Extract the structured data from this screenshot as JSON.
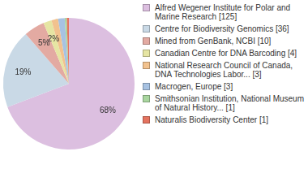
{
  "chart_data": {
    "type": "pie",
    "categories": [
      "Alfred Wegener Institute for Polar and Marine Research [125]",
      "Centre for Biodiversity Genomics [36]",
      "Mined from GenBank, NCBI [10]",
      "Canadian Centre for DNA Barcoding [4]",
      "National Research Council of Canada, DNA Technologies Labor... [3]",
      "Macrogen, Europe [3]",
      "Smithsonian Institution, National Museum of Natural History... [1]",
      "Naturalis Biodiversity Center [1]"
    ],
    "values": [
      68,
      19,
      5,
      2,
      1.6,
      1.6,
      0.5,
      0.5
    ],
    "value_labels": [
      "68%",
      "19%",
      "5%",
      "2%",
      null,
      null,
      null,
      null
    ],
    "colors": [
      "#dcbfe0",
      "#c9d9e6",
      "#e3aaa2",
      "#e6e5a3",
      "#f2c28e",
      "#a7c2e2",
      "#a9d69f",
      "#e5735f"
    ],
    "data_labels": true,
    "legend": "right"
  }
}
